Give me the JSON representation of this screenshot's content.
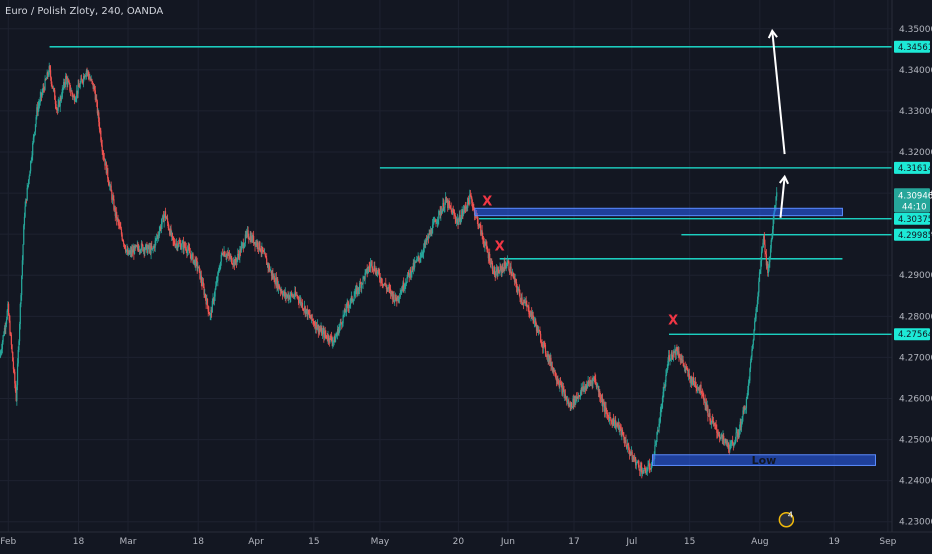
{
  "header": {
    "title": "Euro / Polish Zloty, 240, OANDA"
  },
  "chart_data": {
    "type": "candlestick",
    "symbol": "EURPLN",
    "interval": "240",
    "exchange": "OANDA",
    "ylim": [
      4.2275,
      4.357
    ],
    "x_range": [
      "2024-01-30",
      "2024-09-02"
    ],
    "y_ticks": [
      "4.35000",
      "4.34000",
      "4.33000",
      "4.32000",
      "4.31000",
      "4.30000",
      "4.29000",
      "4.28000",
      "4.27000",
      "4.26000",
      "4.25000",
      "4.24000",
      "4.23000"
    ],
    "x_ticks": [
      {
        "label": "Feb",
        "date": "2024-02-01"
      },
      {
        "label": "18",
        "date": "2024-02-18"
      },
      {
        "label": "Mar",
        "date": "2024-03-01"
      },
      {
        "label": "18",
        "date": "2024-03-18"
      },
      {
        "label": "Apr",
        "date": "2024-04-01"
      },
      {
        "label": "15",
        "date": "2024-04-15"
      },
      {
        "label": "May",
        "date": "2024-05-01"
      },
      {
        "label": "20",
        "date": "2024-05-20"
      },
      {
        "label": "Jun",
        "date": "2024-06-01"
      },
      {
        "label": "17",
        "date": "2024-06-17"
      },
      {
        "label": "Jul",
        "date": "2024-07-01"
      },
      {
        "label": "15",
        "date": "2024-07-15"
      },
      {
        "label": "Aug",
        "date": "2024-08-01"
      },
      {
        "label": "19",
        "date": "2024-08-19"
      },
      {
        "label": "Sep",
        "date": "2024-09-01"
      }
    ],
    "price_path": [
      [
        "2024-01-30",
        4.27
      ],
      [
        "2024-02-01",
        4.282
      ],
      [
        "2024-02-03",
        4.26
      ],
      [
        "2024-02-05",
        4.305
      ],
      [
        "2024-02-08",
        4.33
      ],
      [
        "2024-02-11",
        4.34
      ],
      [
        "2024-02-13",
        4.33
      ],
      [
        "2024-02-15",
        4.338
      ],
      [
        "2024-02-17",
        4.333
      ],
      [
        "2024-02-20",
        4.34
      ],
      [
        "2024-02-22",
        4.335
      ],
      [
        "2024-02-24",
        4.32
      ],
      [
        "2024-02-27",
        4.305
      ],
      [
        "2024-03-01",
        4.295
      ],
      [
        "2024-03-04",
        4.297
      ],
      [
        "2024-03-07",
        4.296
      ],
      [
        "2024-03-10",
        4.305
      ],
      [
        "2024-03-12",
        4.298
      ],
      [
        "2024-03-15",
        4.297
      ],
      [
        "2024-03-18",
        4.292
      ],
      [
        "2024-03-21",
        4.28
      ],
      [
        "2024-03-24",
        4.296
      ],
      [
        "2024-03-27",
        4.293
      ],
      [
        "2024-03-30",
        4.3
      ],
      [
        "2024-04-02",
        4.297
      ],
      [
        "2024-04-05",
        4.29
      ],
      [
        "2024-04-08",
        4.285
      ],
      [
        "2024-04-11",
        4.285
      ],
      [
        "2024-04-14",
        4.28
      ],
      [
        "2024-04-17",
        4.276
      ],
      [
        "2024-04-20",
        4.274
      ],
      [
        "2024-04-23",
        4.282
      ],
      [
        "2024-04-26",
        4.287
      ],
      [
        "2024-04-29",
        4.293
      ],
      [
        "2024-05-02",
        4.288
      ],
      [
        "2024-05-05",
        4.284
      ],
      [
        "2024-05-08",
        4.29
      ],
      [
        "2024-05-11",
        4.295
      ],
      [
        "2024-05-14",
        4.302
      ],
      [
        "2024-05-17",
        4.308
      ],
      [
        "2024-05-20",
        4.303
      ],
      [
        "2024-05-23",
        4.309
      ],
      [
        "2024-05-26",
        4.299
      ],
      [
        "2024-05-29",
        4.29
      ],
      [
        "2024-06-01",
        4.293
      ],
      [
        "2024-06-04",
        4.285
      ],
      [
        "2024-06-07",
        4.28
      ],
      [
        "2024-06-10",
        4.272
      ],
      [
        "2024-06-13",
        4.265
      ],
      [
        "2024-06-16",
        4.258
      ],
      [
        "2024-06-19",
        4.262
      ],
      [
        "2024-06-22",
        4.265
      ],
      [
        "2024-06-25",
        4.256
      ],
      [
        "2024-06-28",
        4.253
      ],
      [
        "2024-07-01",
        4.246
      ],
      [
        "2024-07-04",
        4.242
      ],
      [
        "2024-07-06",
        4.244
      ],
      [
        "2024-07-08",
        4.256
      ],
      [
        "2024-07-10",
        4.27
      ],
      [
        "2024-07-12",
        4.272
      ],
      [
        "2024-07-15",
        4.265
      ],
      [
        "2024-07-18",
        4.262
      ],
      [
        "2024-07-20",
        4.255
      ],
      [
        "2024-07-23",
        4.25
      ],
      [
        "2024-07-25",
        4.248
      ],
      [
        "2024-07-27",
        4.252
      ],
      [
        "2024-07-29",
        4.26
      ],
      [
        "2024-07-31",
        4.28
      ],
      [
        "2024-08-02",
        4.3
      ],
      [
        "2024-08-03",
        4.29
      ],
      [
        "2024-08-04",
        4.3
      ],
      [
        "2024-08-05",
        4.3095
      ]
    ],
    "current_price": {
      "value": 4.30946,
      "label": "4.30946",
      "countdown": "44:10"
    },
    "levels": [
      {
        "value": 4.34561,
        "label": "4.34561",
        "from": "2024-02-11",
        "tag": true
      },
      {
        "value": 4.31614,
        "label": "4.31614",
        "from": "2024-05-01",
        "tag": true
      },
      {
        "value": 4.30375,
        "label": "4.30375",
        "from": "2024-05-25",
        "tag": true
      },
      {
        "value": 4.29985,
        "label": "4.29985",
        "from": "2024-07-13",
        "tag": true
      },
      {
        "value": 4.294,
        "label": "",
        "from": "2024-05-30",
        "to": "2024-08-21",
        "tag": false
      },
      {
        "value": 4.27564,
        "label": "4.27564",
        "from": "2024-07-10",
        "tag": true
      }
    ],
    "zones": [
      {
        "from": "2024-05-24",
        "to": "2024-08-21",
        "top": 4.3063,
        "bottom": 4.3045,
        "label": ""
      },
      {
        "from": "2024-07-06",
        "to": "2024-08-29",
        "top": 4.2463,
        "bottom": 4.2437,
        "label": "Low"
      }
    ],
    "x_marks": [
      {
        "date": "2024-05-27",
        "price": 4.307,
        "symbol": "X"
      },
      {
        "date": "2024-05-30",
        "price": 4.296,
        "symbol": "X"
      },
      {
        "date": "2024-07-11",
        "price": 4.278,
        "symbol": "X"
      }
    ],
    "arrows": [
      {
        "from": [
          "2024-08-06",
          4.304
        ],
        "to": [
          "2024-08-07",
          4.314
        ]
      },
      {
        "from": [
          "2024-08-07",
          4.3195
        ],
        "to": [
          "2024-08-04",
          4.3495
        ]
      }
    ],
    "badge": {
      "text": "4",
      "date": "2024-08-05",
      "price": 4.23
    },
    "colors": {
      "background": "#131722",
      "grid": "#1e2230",
      "up": "#26a69a",
      "down": "#ef5350",
      "level": "#1de9d6",
      "zone": "#2962ff",
      "x_mark": "#f23645",
      "arrow": "#ffffff",
      "current_tag": "#26a69a"
    },
    "grid": true
  }
}
